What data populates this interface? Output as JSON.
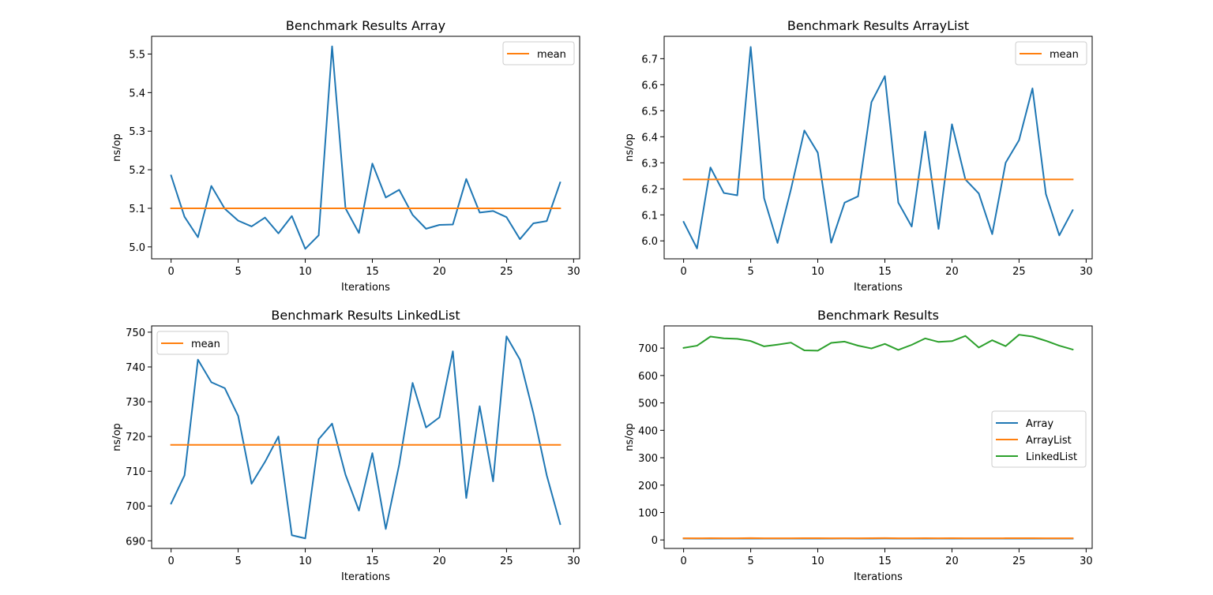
{
  "chart_data": [
    {
      "type": "line",
      "title": "Benchmark Results Array",
      "xlabel": "Iterations",
      "ylabel": "ns/op",
      "xlim": [
        -1.45,
        30.45
      ],
      "ylim": [
        4.969,
        5.546
      ],
      "xticks": [
        "0",
        "5",
        "10",
        "15",
        "20",
        "25",
        "30"
      ],
      "yticks": [
        "5.0",
        "5.1",
        "5.2",
        "5.3",
        "5.4",
        "5.5"
      ],
      "legend": "top-right",
      "grid": false,
      "series": [
        {
          "color": "#1f77b4",
          "x": [
            0,
            1,
            2,
            3,
            4,
            5,
            6,
            7,
            8,
            9,
            10,
            11,
            12,
            13,
            14,
            15,
            16,
            17,
            18,
            19,
            20,
            21,
            22,
            23,
            24,
            25,
            26,
            27,
            28,
            29
          ],
          "y": [
            5.185,
            5.078,
            5.025,
            5.158,
            5.099,
            5.068,
            5.053,
            5.076,
            5.035,
            5.08,
            4.995,
            5.03,
            5.52,
            5.1,
            5.036,
            5.216,
            5.128,
            5.148,
            5.083,
            5.047,
            5.057,
            5.058,
            5.176,
            5.089,
            5.093,
            5.077,
            5.02,
            5.061,
            5.067,
            5.167
          ]
        },
        {
          "name": "mean",
          "color": "#ff7f0e",
          "x": [
            0,
            29
          ],
          "y": [
            5.1,
            5.1
          ]
        }
      ]
    },
    {
      "type": "line",
      "title": "Benchmark Results ArrayList",
      "xlabel": "Iterations",
      "ylabel": "ns/op",
      "xlim": [
        -1.45,
        30.45
      ],
      "ylim": [
        5.931,
        6.786
      ],
      "xticks": [
        "0",
        "5",
        "10",
        "15",
        "20",
        "25",
        "30"
      ],
      "yticks": [
        "6.0",
        "6.1",
        "6.2",
        "6.3",
        "6.4",
        "6.5",
        "6.6",
        "6.7"
      ],
      "legend": "top-right",
      "grid": false,
      "series": [
        {
          "color": "#1f77b4",
          "x": [
            0,
            1,
            2,
            3,
            4,
            5,
            6,
            7,
            8,
            9,
            10,
            11,
            12,
            13,
            14,
            15,
            16,
            17,
            18,
            19,
            20,
            21,
            22,
            23,
            24,
            25,
            26,
            27,
            28,
            29
          ],
          "y": [
            6.073,
            5.971,
            6.282,
            6.184,
            6.175,
            6.745,
            6.164,
            5.992,
            6.198,
            6.424,
            6.339,
            5.993,
            6.147,
            6.171,
            6.533,
            6.633,
            6.147,
            6.055,
            6.42,
            6.046,
            6.448,
            6.236,
            6.182,
            6.026,
            6.3,
            6.387,
            6.586,
            6.18,
            6.021,
            6.118
          ]
        },
        {
          "name": "mean",
          "color": "#ff7f0e",
          "x": [
            0,
            29
          ],
          "y": [
            6.236,
            6.236
          ]
        }
      ]
    },
    {
      "type": "line",
      "title": "Benchmark Results LinkedList",
      "xlabel": "Iterations",
      "ylabel": "ns/op",
      "xlim": [
        -1.45,
        30.45
      ],
      "ylim": [
        687.8,
        751.8
      ],
      "xticks": [
        "0",
        "5",
        "10",
        "15",
        "20",
        "25",
        "30"
      ],
      "yticks": [
        "690",
        "700",
        "710",
        "720",
        "730",
        "740",
        "750"
      ],
      "legend": "top-left",
      "grid": false,
      "series": [
        {
          "color": "#1f77b4",
          "x": [
            0,
            1,
            2,
            3,
            4,
            5,
            6,
            7,
            8,
            9,
            10,
            11,
            12,
            13,
            14,
            15,
            16,
            17,
            18,
            19,
            20,
            21,
            22,
            23,
            24,
            25,
            26,
            27,
            28,
            29
          ],
          "y": [
            700.7,
            708.8,
            742.1,
            735.6,
            733.9,
            725.9,
            706.4,
            712.7,
            720.0,
            691.6,
            690.7,
            719.2,
            723.7,
            709.0,
            698.7,
            715.2,
            693.4,
            711.9,
            735.4,
            722.6,
            725.5,
            744.5,
            702.3,
            728.7,
            707.1,
            748.8,
            742.1,
            726.7,
            708.8,
            694.8
          ]
        },
        {
          "name": "mean",
          "color": "#ff7f0e",
          "x": [
            0,
            29
          ],
          "y": [
            717.6,
            717.6
          ]
        }
      ]
    },
    {
      "type": "line",
      "title": "Benchmark Results",
      "xlabel": "Iterations",
      "ylabel": "ns/op",
      "xlim": [
        -1.45,
        30.45
      ],
      "ylim": [
        -31,
        781
      ],
      "xticks": [
        "0",
        "5",
        "10",
        "15",
        "20",
        "25",
        "30"
      ],
      "yticks": [
        "0",
        "100",
        "200",
        "300",
        "400",
        "500",
        "600",
        "700"
      ],
      "legend": "center-right",
      "grid": false,
      "series": [
        {
          "name": "Array",
          "color": "#1f77b4",
          "x": [
            0,
            1,
            2,
            3,
            4,
            5,
            6,
            7,
            8,
            9,
            10,
            11,
            12,
            13,
            14,
            15,
            16,
            17,
            18,
            19,
            20,
            21,
            22,
            23,
            24,
            25,
            26,
            27,
            28,
            29
          ],
          "y": [
            5.185,
            5.078,
            5.025,
            5.158,
            5.099,
            5.068,
            5.053,
            5.076,
            5.035,
            5.08,
            4.995,
            5.03,
            5.52,
            5.1,
            5.036,
            5.216,
            5.128,
            5.148,
            5.083,
            5.047,
            5.057,
            5.058,
            5.176,
            5.089,
            5.093,
            5.077,
            5.02,
            5.061,
            5.067,
            5.167
          ]
        },
        {
          "name": "ArrayList",
          "color": "#ff7f0e",
          "x": [
            0,
            1,
            2,
            3,
            4,
            5,
            6,
            7,
            8,
            9,
            10,
            11,
            12,
            13,
            14,
            15,
            16,
            17,
            18,
            19,
            20,
            21,
            22,
            23,
            24,
            25,
            26,
            27,
            28,
            29
          ],
          "y": [
            6.073,
            5.971,
            6.282,
            6.184,
            6.175,
            6.745,
            6.164,
            5.992,
            6.198,
            6.424,
            6.339,
            5.993,
            6.147,
            6.171,
            6.533,
            6.633,
            6.147,
            6.055,
            6.42,
            6.046,
            6.448,
            6.236,
            6.182,
            6.026,
            6.3,
            6.387,
            6.586,
            6.18,
            6.021,
            6.118
          ]
        },
        {
          "name": "LinkedList",
          "color": "#2ca02c",
          "x": [
            0,
            1,
            2,
            3,
            4,
            5,
            6,
            7,
            8,
            9,
            10,
            11,
            12,
            13,
            14,
            15,
            16,
            17,
            18,
            19,
            20,
            21,
            22,
            23,
            24,
            25,
            26,
            27,
            28,
            29
          ],
          "y": [
            700.7,
            708.8,
            742.1,
            735.6,
            733.9,
            725.9,
            706.4,
            712.7,
            720.0,
            691.6,
            690.7,
            719.2,
            723.7,
            709.0,
            698.7,
            715.2,
            693.4,
            711.9,
            735.4,
            722.6,
            725.5,
            744.5,
            702.3,
            728.7,
            707.1,
            748.8,
            742.1,
            726.7,
            708.8,
            694.8
          ]
        }
      ]
    }
  ]
}
